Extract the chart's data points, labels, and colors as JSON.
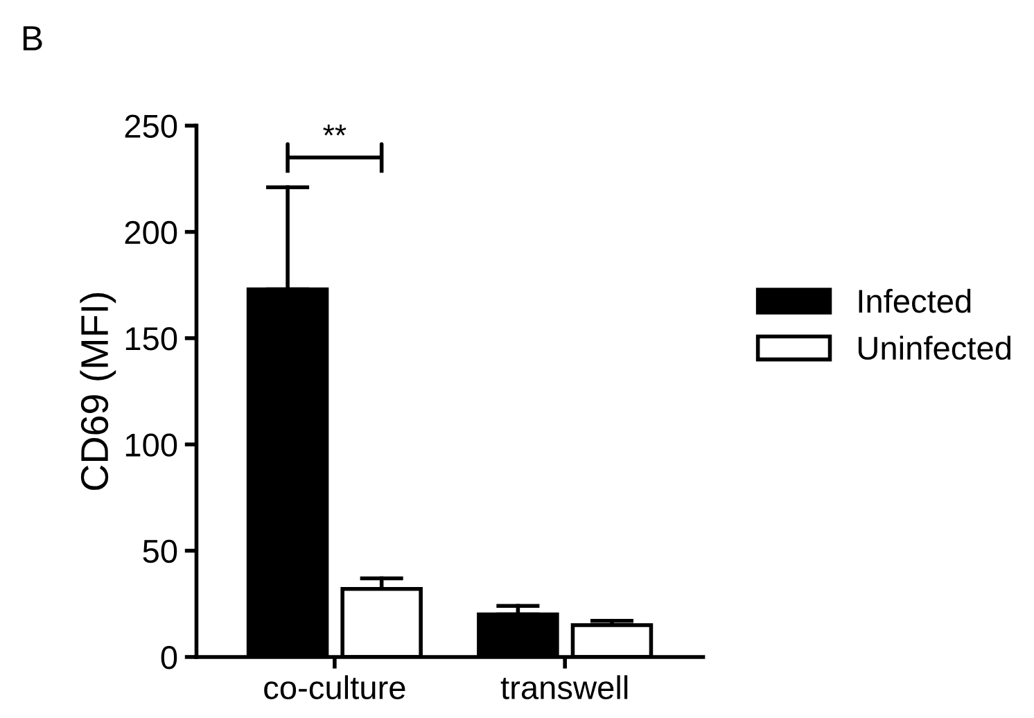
{
  "chart_data": {
    "type": "bar",
    "ylabel": "CD69 (MFI)",
    "categories": [
      "co-culture",
      "transwell"
    ],
    "series": [
      {
        "name": "Infected",
        "color": "#000000",
        "values": [
          173,
          20
        ],
        "errors": [
          [
            173,
            221
          ],
          [
            20,
            24
          ]
        ]
      },
      {
        "name": "Uninfected",
        "color": "#ffffff",
        "values": [
          32,
          15
        ],
        "errors": [
          [
            32,
            37
          ],
          [
            15,
            17
          ]
        ]
      }
    ],
    "ylim": [
      0,
      250
    ],
    "yticks": [
      0,
      50,
      100,
      150,
      200,
      250
    ],
    "grid": false,
    "legend": "right",
    "annotations": [
      "B",
      "**"
    ]
  }
}
